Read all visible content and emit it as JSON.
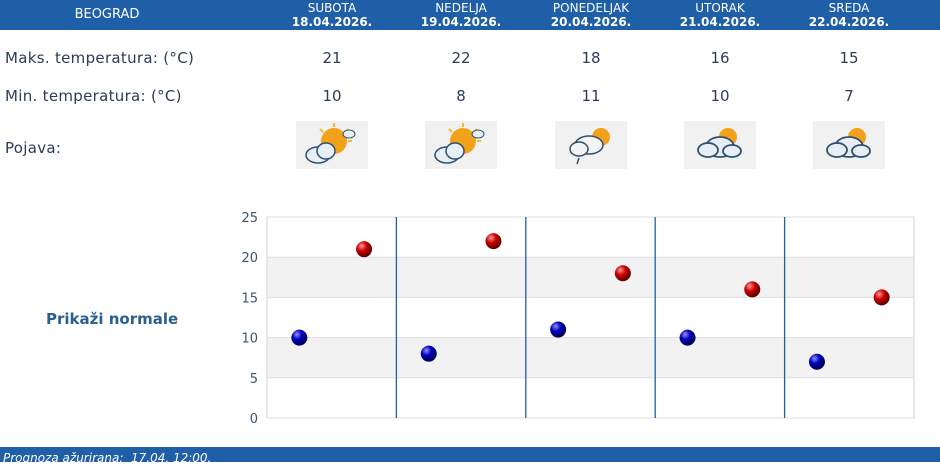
{
  "header": {
    "city": "BEOGRAD"
  },
  "days": [
    {
      "name": "SUBOTA",
      "date": "18.04.2026.",
      "max": "21",
      "min": "10",
      "icon": "sun-behind-cloud-icon"
    },
    {
      "name": "NEDELJA",
      "date": "19.04.2026.",
      "max": "22",
      "min": "8",
      "icon": "sun-behind-cloud-icon"
    },
    {
      "name": "PONEDELJAK",
      "date": "20.04.2026.",
      "max": "18",
      "min": "11",
      "icon": "cloud-with-rain-and-sun-icon"
    },
    {
      "name": "UTORAK",
      "date": "21.04.2026.",
      "max": "16",
      "min": "10",
      "icon": "clouds-with-sun-icon"
    },
    {
      "name": "SREDA",
      "date": "22.04.2026.",
      "max": "15",
      "min": "7",
      "icon": "clouds-with-sun-icon"
    }
  ],
  "rows": {
    "max_label": "Maks. temperatura: (°C)",
    "min_label": "Min. temperatura: (°C)",
    "phenomenon_label": "Pojava:"
  },
  "show_normals": "Prikaži normale",
  "footer": {
    "updated": "Prognoza ažurirana:  17.04. 12:00."
  },
  "colors": {
    "header_bg": "#1f5fa8",
    "max_marker": "#cc0000",
    "min_marker": "#0000bb"
  },
  "chart_data": {
    "type": "scatter",
    "categories": [
      "18.04.2026.",
      "19.04.2026.",
      "20.04.2026.",
      "21.04.2026.",
      "22.04.2026."
    ],
    "series": [
      {
        "values": [
          10,
          8,
          11,
          10,
          7
        ]
      },
      {
        "values": [
          21,
          22,
          18,
          16,
          15
        ]
      }
    ],
    "ylim": [
      0,
      25
    ],
    "yticks": [
      "0",
      "5",
      "10",
      "15",
      "20",
      "25"
    ],
    "grid": true
  }
}
